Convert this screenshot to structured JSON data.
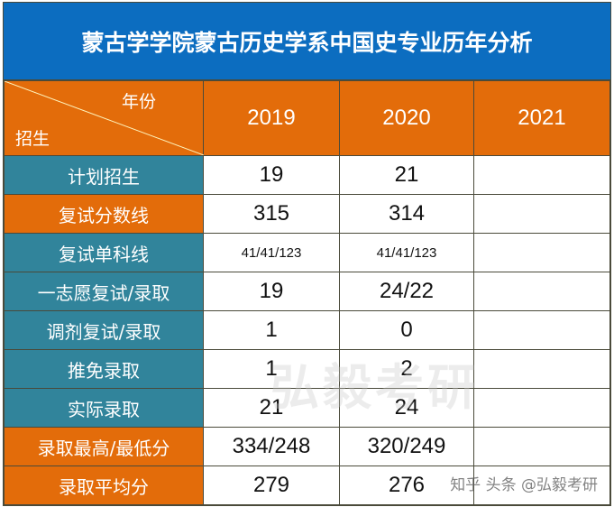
{
  "title": "蒙古学学院蒙古历史学系中国史专业历年分析",
  "header": {
    "col_label": "年份",
    "row_label": "招生",
    "years": [
      "2019",
      "2020",
      "2021"
    ]
  },
  "rows": [
    {
      "label": "计划招生",
      "color": "teal",
      "values": [
        "19",
        "21",
        ""
      ]
    },
    {
      "label": "复试分数线",
      "color": "orange",
      "values": [
        "315",
        "314",
        ""
      ]
    },
    {
      "label": "复试单科线",
      "color": "teal",
      "values": [
        "41/41/123",
        "41/41/123",
        ""
      ],
      "small": true
    },
    {
      "label": "一志愿复试/录取",
      "color": "teal",
      "values": [
        "19",
        "24/22",
        ""
      ]
    },
    {
      "label": "调剂复试/录取",
      "color": "teal",
      "values": [
        "1",
        "0",
        ""
      ]
    },
    {
      "label": "推免录取",
      "color": "teal",
      "values": [
        "1",
        "2",
        ""
      ]
    },
    {
      "label": "实际录取",
      "color": "teal",
      "values": [
        "21",
        "24",
        ""
      ]
    },
    {
      "label": "录取最高/最低分",
      "color": "orange",
      "values": [
        "334/248",
        "320/249",
        ""
      ]
    },
    {
      "label": "录取平均分",
      "color": "orange",
      "values": [
        "279",
        "276",
        ""
      ]
    }
  ],
  "colors": {
    "title": "#0c6dc0",
    "orange": "#e36c0a",
    "teal": "#31849b"
  },
  "watermark": {
    "brand": "弘毅考研",
    "credit": "知乎 头条 @弘毅考研"
  }
}
